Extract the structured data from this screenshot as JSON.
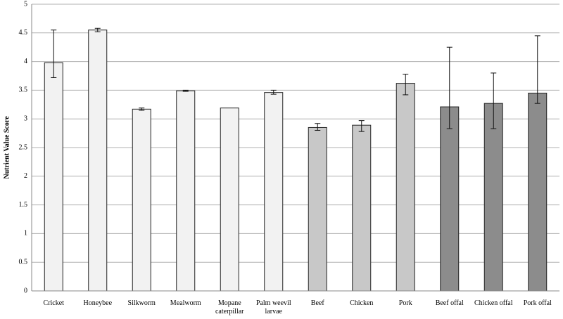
{
  "chart_data": {
    "type": "bar",
    "ylabel": "Nutrient Value Score",
    "categories": [
      "Cricket",
      "Honeybee",
      "Silkworm",
      "Mealworm",
      "Mopane caterpillar",
      "Palm weevil larvae",
      "Beef",
      "Chicken",
      "Pork",
      "Beef offal",
      "Chicken offal",
      "Pork offal"
    ],
    "values": [
      3.98,
      4.55,
      3.17,
      3.49,
      3.19,
      3.46,
      2.85,
      2.89,
      3.62,
      3.21,
      3.27,
      3.45
    ],
    "errors_plus": [
      0.57,
      0.03,
      0.02,
      0.01,
      0,
      0.04,
      0.07,
      0.08,
      0.16,
      1.04,
      0.53,
      1.0
    ],
    "errors_minus": [
      0.26,
      0.03,
      0.02,
      0.01,
      0,
      0.03,
      0.05,
      0.11,
      0.2,
      0.38,
      0.44,
      0.18
    ],
    "colors": [
      "#f2f2f2",
      "#f2f2f2",
      "#f2f2f2",
      "#f2f2f2",
      "#f2f2f2",
      "#f2f2f2",
      "#c8c8c8",
      "#c8c8c8",
      "#c8c8c8",
      "#8c8c8c",
      "#8c8c8c",
      "#8c8c8c"
    ],
    "ylim": [
      0,
      5
    ],
    "yticks": [
      0,
      0.5,
      1,
      1.5,
      2,
      2.5,
      3,
      3.5,
      4,
      4.5,
      5
    ],
    "grid": true
  }
}
